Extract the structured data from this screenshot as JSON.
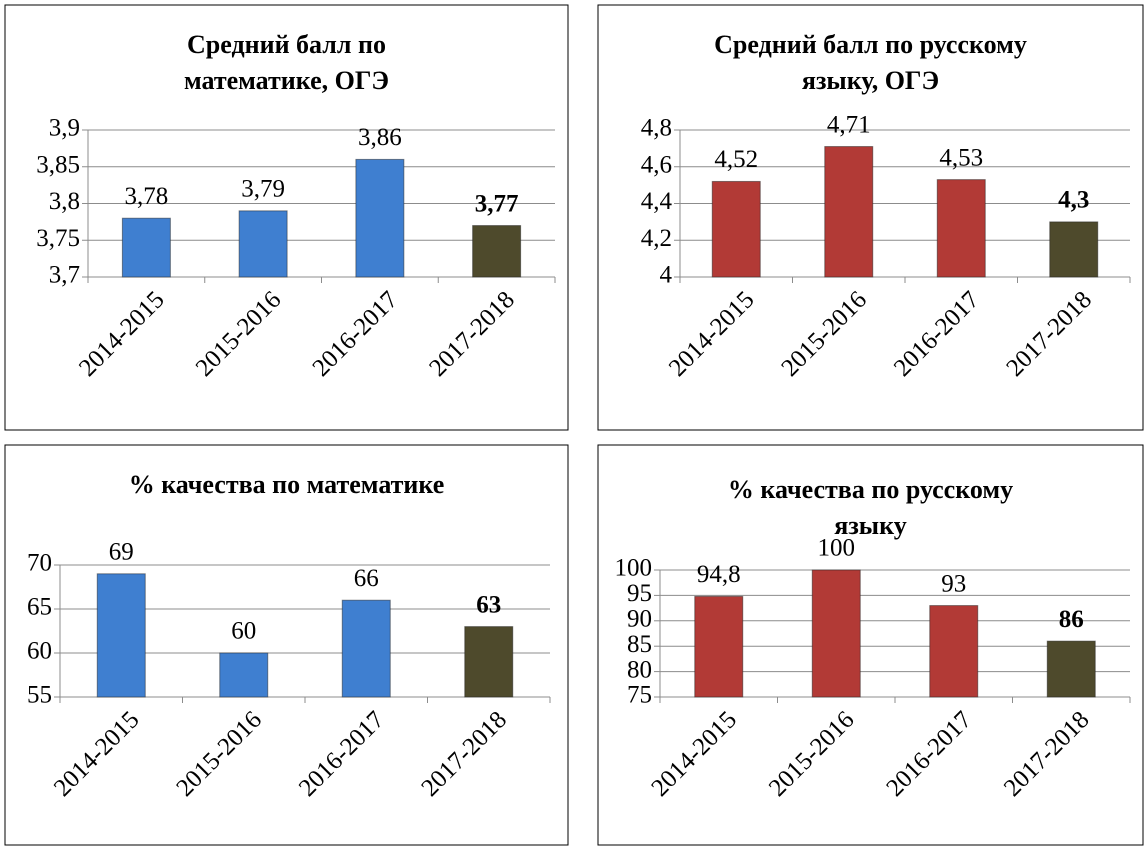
{
  "chart_data": [
    {
      "type": "bar",
      "title": [
        "Средний балл по",
        "математике, ОГЭ"
      ],
      "categories": [
        "2014-2015",
        "2015-2016",
        "2016-2017",
        "2017-2018"
      ],
      "values": [
        3.78,
        3.79,
        3.86,
        3.77
      ],
      "value_labels": [
        "3,78",
        "3,79",
        "3,86",
        "3,77"
      ],
      "colors": [
        "#3f7fd0",
        "#3f7fd0",
        "#3f7fd0",
        "#4e4a2c"
      ],
      "highlight": [
        false,
        false,
        false,
        true
      ],
      "ylim": [
        3.7,
        3.9
      ],
      "yticks": [
        {
          "value": 3.7,
          "label": "3,7"
        },
        {
          "value": 3.75,
          "label": "3,75"
        },
        {
          "value": 3.8,
          "label": "3,8"
        },
        {
          "value": 3.85,
          "label": "3,85"
        },
        {
          "value": 3.9,
          "label": "3,9"
        }
      ],
      "grid": true
    },
    {
      "type": "bar",
      "title": [
        "Средний балл по русскому",
        "языку,  ОГЭ"
      ],
      "categories": [
        "2014-2015",
        "2015-2016",
        "2016-2017",
        "2017-2018"
      ],
      "values": [
        4.52,
        4.71,
        4.53,
        4.3
      ],
      "value_labels": [
        "4,52",
        "4,71",
        "4,53",
        "4,3"
      ],
      "colors": [
        "#b23a36",
        "#b23a36",
        "#b23a36",
        "#4e4a2c"
      ],
      "highlight": [
        false,
        false,
        false,
        true
      ],
      "ylim": [
        4,
        4.8
      ],
      "yticks": [
        4,
        {
          "value": 4.2,
          "label": "4,2"
        },
        {
          "value": 4.4,
          "label": "4,4"
        },
        {
          "value": 4.6,
          "label": "4,6"
        },
        {
          "value": 4.8,
          "label": "4,8"
        }
      ],
      "grid": true
    },
    {
      "type": "bar",
      "title": [
        "% качества по математике"
      ],
      "categories": [
        "2014-2015",
        "2015-2016",
        "2016-2017",
        "2017-2018"
      ],
      "values": [
        69,
        60,
        66,
        63
      ],
      "colors": [
        "#3f7fd0",
        "#3f7fd0",
        "#3f7fd0",
        "#4e4a2c"
      ],
      "highlight": [
        false,
        false,
        false,
        true
      ],
      "ylim": [
        55,
        70
      ],
      "yticks": [
        55,
        60,
        65,
        70
      ],
      "grid": true
    },
    {
      "type": "bar",
      "title": [
        "% качества по русскому",
        "языку"
      ],
      "categories": [
        "2014-2015",
        "2015-2016",
        "2016-2017",
        "2017-2018"
      ],
      "values": [
        94.8,
        100,
        93,
        86
      ],
      "value_labels": [
        "94,8",
        "100",
        "93",
        "86"
      ],
      "colors": [
        "#b23a36",
        "#b23a36",
        "#b23a36",
        "#4e4a2c"
      ],
      "highlight": [
        false,
        false,
        false,
        true
      ],
      "ylim": [
        75,
        100
      ],
      "yticks": [
        75,
        80,
        85,
        90,
        95,
        100
      ],
      "grid": true
    }
  ]
}
